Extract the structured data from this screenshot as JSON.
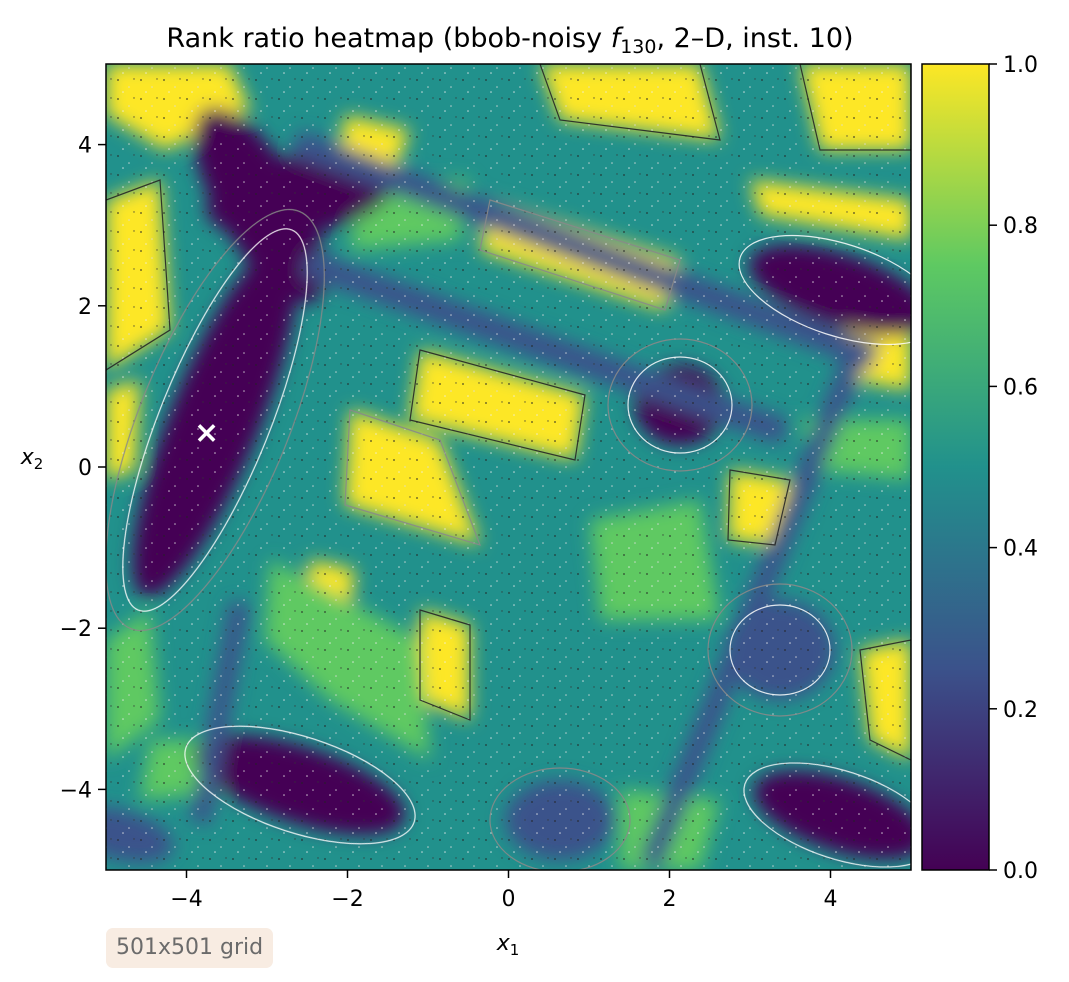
{
  "chart_data": {
    "type": "heatmap",
    "title": {
      "prefix": "Rank ratio heatmap (bbob-noisy ",
      "func_symbol": "f",
      "func_subscript": "130",
      "suffix": ", 2–D, inst. 10)"
    },
    "xlabel": {
      "symbol": "x",
      "subscript": "1"
    },
    "ylabel": {
      "symbol": "x",
      "subscript": "2"
    },
    "xlim": [
      -5,
      5
    ],
    "ylim": [
      -5,
      5
    ],
    "x_ticks": [
      -4,
      -2,
      0,
      2,
      4
    ],
    "y_ticks": [
      -4,
      -2,
      0,
      2,
      4
    ],
    "x_tick_labels": [
      "−4",
      "−2",
      "0",
      "2",
      "4"
    ],
    "y_tick_labels": [
      "−4",
      "−2",
      "0",
      "2",
      "4"
    ],
    "colorbar": {
      "range": [
        0,
        1
      ],
      "ticks": [
        0,
        0.2,
        0.4,
        0.6,
        0.8,
        1.0
      ],
      "tick_labels": [
        "0.0",
        "0.2",
        "0.4",
        "0.6",
        "0.8",
        "1.0"
      ],
      "colormap": "viridis",
      "colors": [
        "#440154",
        "#3b528b",
        "#21918c",
        "#5ec962",
        "#fde725"
      ]
    },
    "marker": {
      "symbol": "×",
      "x": -3.75,
      "y": 0.42,
      "color": "#ffffff"
    },
    "grid": false,
    "annotation": "501x501 grid"
  }
}
